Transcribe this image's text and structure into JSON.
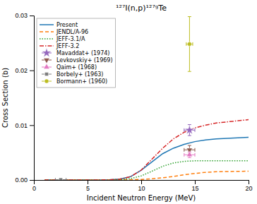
{
  "chart_data": {
    "type": "line",
    "title": "¹²⁷I(n,p)¹²⁷ᵍTe",
    "xlabel": "Incident Neutron Energy (MeV)",
    "ylabel": "Cross Section (b)",
    "xlim": [
      0,
      20
    ],
    "ylim": [
      0,
      0.03
    ],
    "xticks": [
      0,
      5,
      10,
      15,
      20
    ],
    "yticks": [
      {
        "value": 0,
        "label": "0.00"
      },
      0.01,
      0.02,
      0.03
    ],
    "legend": "upper-left",
    "series": [
      {
        "name": "Present",
        "type": "line",
        "line_style": "solid",
        "x": [
          1,
          2,
          3,
          4,
          5,
          6,
          7,
          8,
          9,
          10,
          11,
          12,
          13,
          14,
          15,
          16,
          17,
          18,
          19,
          20
        ],
        "values": [
          0,
          0,
          0,
          0,
          1e-06,
          5e-06,
          3e-05,
          0.00015,
          0.0006,
          0.0018,
          0.0033,
          0.0048,
          0.0058,
          0.0065,
          0.007,
          0.0073,
          0.0075,
          0.0076,
          0.0077,
          0.0078
        ]
      },
      {
        "name": "JENDL/A-96",
        "type": "line",
        "line_style": "dashed",
        "x": [
          1,
          2,
          3,
          4,
          5,
          6,
          7,
          8,
          9,
          10,
          11,
          12,
          13,
          14,
          15,
          16,
          17,
          18,
          19,
          20
        ],
        "values": [
          0,
          0,
          0,
          0,
          0,
          1e-06,
          3e-06,
          1e-05,
          4e-05,
          0.0001,
          0.00022,
          0.0004,
          0.00065,
          0.00095,
          0.0012,
          0.0014,
          0.0015,
          0.00155,
          0.00158,
          0.0016
        ]
      },
      {
        "name": "JEFF-3.1/A",
        "type": "line",
        "line_style": "dotted",
        "x": [
          1,
          2,
          3,
          4,
          5,
          6,
          7,
          8,
          9,
          10,
          11,
          12,
          13,
          14,
          15,
          16,
          17,
          18,
          19,
          20
        ],
        "values": [
          0,
          0,
          0,
          0,
          0,
          2e-06,
          1e-05,
          6e-05,
          0.00025,
          0.00075,
          0.0016,
          0.0025,
          0.0031,
          0.0034,
          0.0035,
          0.0035,
          0.0035,
          0.0035,
          0.0035,
          0.0035
        ]
      },
      {
        "name": "JEFF-3.2",
        "type": "line",
        "line_style": "dashdot",
        "x": [
          1,
          2,
          3,
          4,
          5,
          6,
          7,
          8,
          9,
          10,
          11,
          12,
          13,
          14,
          15,
          16,
          17,
          18,
          19,
          20
        ],
        "values": [
          0,
          0,
          0,
          0,
          1e-06,
          5e-06,
          3e-05,
          0.00015,
          0.0006,
          0.0018,
          0.0038,
          0.0058,
          0.0075,
          0.0087,
          0.0095,
          0.01,
          0.0104,
          0.0106,
          0.0108,
          0.011
        ]
      },
      {
        "name": "Mavaddat+ (1974)",
        "type": "scatter",
        "marker": "star",
        "x": [
          14.5
        ],
        "values": [
          0.0091
        ],
        "xerr": [
          0.5
        ],
        "yerr_lo": [
          0.001
        ],
        "yerr_hi": [
          0.001
        ]
      },
      {
        "name": "Levkovskiy+ (1969)",
        "type": "scatter",
        "marker": "triangle-down",
        "x": [
          14.5
        ],
        "values": [
          0.0055
        ],
        "xerr": [
          0.5
        ],
        "yerr_lo": [
          0.0008
        ],
        "yerr_hi": [
          0.0008
        ]
      },
      {
        "name": "Qaim+ (1968)",
        "type": "scatter",
        "marker": "triangle-up",
        "x": [
          14.5
        ],
        "values": [
          0.0046
        ],
        "xerr": [
          0.5
        ],
        "yerr_lo": [
          0.0005
        ],
        "yerr_hi": [
          0.0005
        ]
      },
      {
        "name": "Borbely+ (1963)",
        "type": "scatter",
        "marker": "square",
        "x": [
          2.5
        ],
        "values": [
          5e-05
        ],
        "xerr": [
          0.5
        ],
        "yerr_lo": [
          3e-05
        ],
        "yerr_hi": [
          3e-05
        ]
      },
      {
        "name": "Bormann+ (1960)",
        "type": "scatter",
        "marker": "circle",
        "x": [
          14.5
        ],
        "values": [
          0.0248
        ],
        "xerr": [
          0.3
        ],
        "yerr_lo": [
          0.005
        ],
        "yerr_hi": [
          0.005
        ]
      }
    ]
  }
}
